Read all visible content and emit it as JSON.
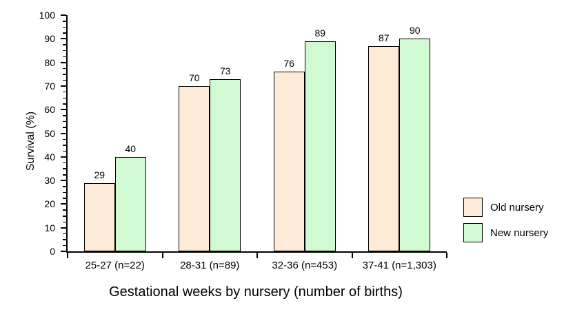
{
  "chart_data": {
    "type": "bar",
    "title": "",
    "xlabel": "Gestational weeks by nursery (number of births)",
    "ylabel": "Survival (%)",
    "categories": [
      "25-27 (n=22)",
      "28-31 (n=89)",
      "32-36 (n=453)",
      "37-41 (n=1,303)"
    ],
    "series": [
      {
        "name": "Old nursery",
        "color": "#FDEAD7",
        "values": [
          29,
          70,
          76,
          87
        ]
      },
      {
        "name": "New nursery",
        "color": "#D2FAD2",
        "values": [
          40,
          73,
          89,
          90
        ]
      }
    ],
    "ylim": [
      0,
      100
    ],
    "y_major_step": 10,
    "y_minor_step": 2.5,
    "y_tick_labels": [
      "0",
      "10",
      "20",
      "30",
      "40",
      "50",
      "60",
      "70",
      "80",
      "90",
      "100"
    ],
    "bar_value_labels": true,
    "grid": false,
    "legend_position": "right",
    "colors": {
      "axis": "#000000",
      "text": "#000000",
      "background": "#FFFFFF",
      "bar_border": "#000000"
    }
  }
}
